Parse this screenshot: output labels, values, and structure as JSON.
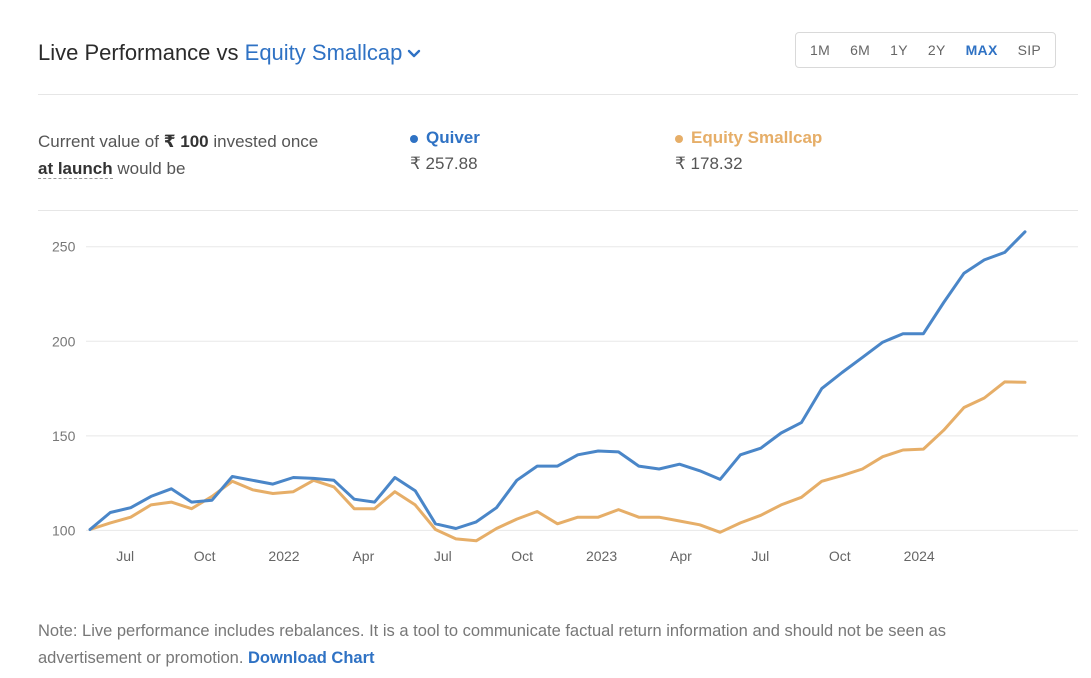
{
  "header": {
    "title_prefix": "Live Performance vs ",
    "benchmark": "Equity Smallcap",
    "ranges": [
      "1M",
      "6M",
      "1Y",
      "2Y",
      "MAX",
      "SIP"
    ],
    "active_range": "MAX"
  },
  "summary": {
    "text_part1": "Current value of ",
    "amount": "₹ 100",
    "text_part2": " invested once",
    "launch_link": "at launch",
    "text_part3": " would be",
    "series": [
      {
        "name": "Quiver",
        "value": "₹ 257.88",
        "color": "#4a86c8"
      },
      {
        "name": "Equity Smallcap",
        "value": "₹ 178.32",
        "color": "#e6ae68"
      }
    ]
  },
  "chart_data": {
    "type": "line",
    "x_labels": [
      "Jul",
      "Oct",
      "2022",
      "Apr",
      "Jul",
      "Oct",
      "2023",
      "Apr",
      "Jul",
      "Oct",
      "2024"
    ],
    "y_ticks": [
      100,
      150,
      200,
      250
    ],
    "ylim": [
      96,
      262
    ],
    "grid": true,
    "series": [
      {
        "name": "Quiver",
        "color": "#4a86c8",
        "values": [
          100.5,
          109.5,
          112,
          118,
          122,
          115,
          116,
          128.5,
          126.5,
          124.5,
          128,
          127.5,
          126.5,
          116.5,
          115,
          128,
          121,
          103.5,
          101,
          104.5,
          112,
          126.5,
          134,
          134,
          140,
          142,
          141.5,
          134,
          132.5,
          135,
          131.5,
          127,
          140,
          143.5,
          151.5,
          157,
          175,
          183.5,
          191.5,
          199.5,
          204,
          204,
          220.5,
          236,
          243,
          247,
          257.88
        ]
      },
      {
        "name": "Equity Smallcap",
        "color": "#e6ae68",
        "values": [
          100.5,
          104,
          107,
          113.5,
          115,
          111.5,
          118,
          126,
          121.5,
          119.5,
          120.5,
          126.5,
          123,
          111.5,
          111.5,
          120.5,
          113.5,
          100.5,
          95.5,
          94.5,
          101,
          106,
          110,
          103.5,
          107,
          107,
          111,
          107,
          107,
          105,
          103,
          99,
          104,
          108,
          113.5,
          117.5,
          126,
          129,
          132.5,
          139,
          142.5,
          143,
          153,
          165,
          170,
          178.5,
          178.32
        ]
      }
    ]
  },
  "note": {
    "text": "Note: Live performance includes rebalances. It is a tool to communicate factual return information and should not be seen as advertisement or promotion. ",
    "download": "Download Chart"
  }
}
